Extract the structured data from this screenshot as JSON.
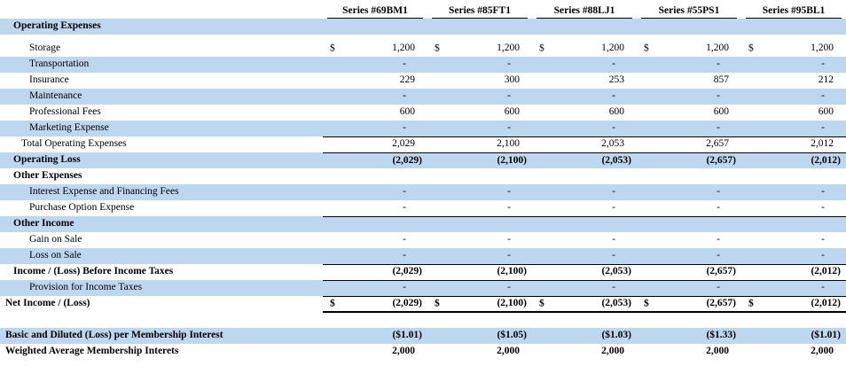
{
  "document": {
    "kind": "income-statement-by-series",
    "colors": {
      "row_shade": "#BDD7EE",
      "rule": "#000000"
    }
  },
  "table": {
    "label_column_header": "",
    "columns": [
      "Series #69BM1",
      "Series #85FT1",
      "Series #88LJ1",
      "Series #55PS1",
      "Series #95BL1"
    ],
    "rows": [
      {
        "type": "data",
        "label": "Operating Expenses",
        "ind": 1,
        "bold": true,
        "shaded": true,
        "values": null
      },
      {
        "type": "spacer",
        "tall": false
      },
      {
        "type": "data",
        "label": "Storage",
        "ind": 3,
        "dollar": true,
        "values": [
          "1,200",
          "1,200",
          "1,200",
          "1,200",
          "1,200"
        ]
      },
      {
        "type": "data",
        "label": "Transportation",
        "ind": 3,
        "shaded": true,
        "values": [
          "-",
          "-",
          "-",
          "-",
          "-"
        ]
      },
      {
        "type": "data",
        "label": "Insurance",
        "ind": 3,
        "values": [
          "229",
          "300",
          "253",
          "857",
          "212"
        ]
      },
      {
        "type": "data",
        "label": "Maintenance",
        "ind": 3,
        "shaded": true,
        "values": [
          "-",
          "-",
          "-",
          "-",
          "-"
        ]
      },
      {
        "type": "data",
        "label": "Professional Fees",
        "ind": 3,
        "values": [
          "600",
          "600",
          "600",
          "600",
          "600"
        ]
      },
      {
        "type": "data",
        "label": "Marketing Expense",
        "ind": 3,
        "shaded": true,
        "values": [
          "-",
          "-",
          "-",
          "-",
          "-"
        ],
        "border": "thin"
      },
      {
        "type": "data",
        "label": "Total Operating Expenses",
        "ind": 2,
        "values": [
          "2,029",
          "2,100",
          "2,053",
          "2,657",
          "2,012"
        ],
        "border": "thin"
      },
      {
        "type": "data",
        "label": "Operating Loss",
        "ind": 1,
        "bold": true,
        "shaded": true,
        "boldValues": true,
        "values": [
          "(2,029)",
          "(2,100)",
          "(2,053)",
          "(2,657)",
          "(2,012)"
        ]
      },
      {
        "type": "data",
        "label": "Other Expenses",
        "ind": 1,
        "bold": true,
        "values": null
      },
      {
        "type": "data",
        "label": "Interest Expense and Financing Fees",
        "ind": 3,
        "shaded": true,
        "values": [
          "-",
          "-",
          "-",
          "-",
          "-"
        ]
      },
      {
        "type": "data",
        "label": "Purchase Option Expense",
        "ind": 3,
        "values": [
          "-",
          "-",
          "-",
          "-",
          "-"
        ],
        "border": "thin"
      },
      {
        "type": "data",
        "label": "Other Income",
        "ind": 1,
        "bold": true,
        "shaded": true,
        "values": null
      },
      {
        "type": "data",
        "label": "Gain on Sale",
        "ind": 3,
        "values": [
          "-",
          "-",
          "-",
          "-",
          "-"
        ]
      },
      {
        "type": "data",
        "label": "Loss on Sale",
        "ind": 3,
        "shaded": true,
        "values": [
          "-",
          "-",
          "-",
          "-",
          "-"
        ],
        "border": "thin"
      },
      {
        "type": "data",
        "label": "Income / (Loss) Before Income Taxes",
        "ind": 1,
        "bold": true,
        "boldValues": true,
        "values": [
          "(2,029)",
          "(2,100)",
          "(2,053)",
          "(2,657)",
          "(2,012)"
        ],
        "border": "thin"
      },
      {
        "type": "data",
        "label": "Provision for Income Taxes",
        "ind": 3,
        "shaded": true,
        "values": [
          "-",
          "-",
          "-",
          "-",
          "-"
        ],
        "border": "thin"
      },
      {
        "type": "data",
        "label": "Net Income / (Loss)",
        "ind": 0,
        "bold": true,
        "boldValues": true,
        "dollar": true,
        "values": [
          "(2,029)",
          "(2,100)",
          "(2,053)",
          "(2,657)",
          "(2,012)"
        ],
        "border": "thick"
      },
      {
        "type": "spacer",
        "tall": true
      },
      {
        "type": "data",
        "label": "Basic and Diluted (Loss) per Membership Interest",
        "ind": 0,
        "bold": true,
        "shaded": true,
        "boldValues": true,
        "values": [
          "($1.01)",
          "($1.05)",
          "($1.03)",
          "($1.33)",
          "($1.01)"
        ]
      },
      {
        "type": "data",
        "label": "Weighted Average Membership Interets",
        "ind": 0,
        "bold": true,
        "boldValues": true,
        "values": [
          "2,000",
          "2,000",
          "2,000",
          "2,000",
          "2,000"
        ]
      }
    ]
  }
}
